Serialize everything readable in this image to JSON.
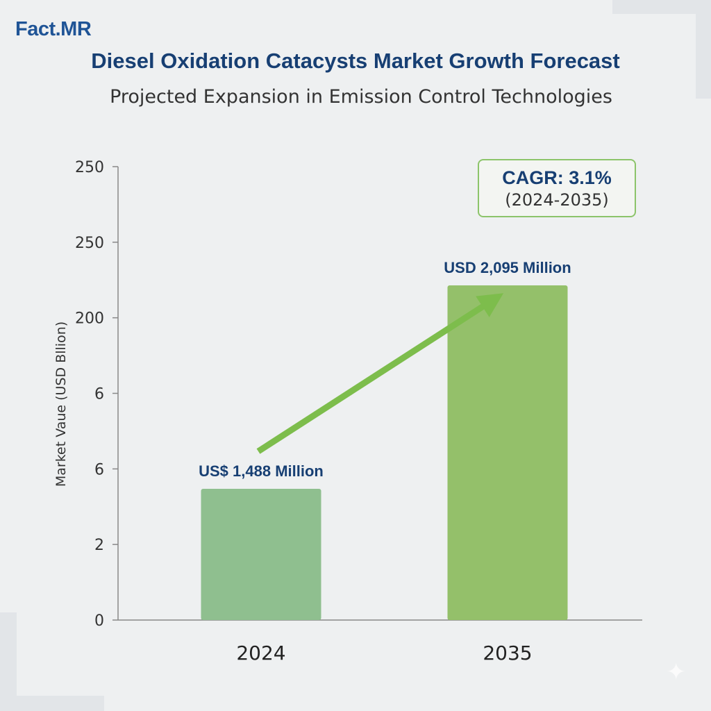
{
  "brand": "Fact.MR",
  "title": "Diesel Oxidation Catacysts Market Growth Forecast",
  "subtitle": "Projected Expansion in Emission Control Technologies",
  "cagr": {
    "main": "CAGR: 3.1%",
    "period": "(2024-2035)"
  },
  "colors": {
    "bar_2024": "#8fbf8f",
    "bar_2035": "#94c06a",
    "arrow": "#7dbd4c",
    "title": "#173f73",
    "brand": "#1f5496"
  },
  "chart_data": {
    "type": "bar",
    "categories": [
      "2024",
      "2035"
    ],
    "values": [
      1488,
      2095
    ],
    "data_labels": [
      "US$ 1,488 Million",
      "USD 2,095 Million"
    ],
    "ylabel": "Market Vaue (USD Bllion)",
    "y_tick_labels": [
      "0",
      "2",
      "6",
      "6",
      "200",
      "250",
      "250"
    ],
    "grid": false,
    "annotation": "upward arrow from 2024 bar to 2035 bar"
  }
}
